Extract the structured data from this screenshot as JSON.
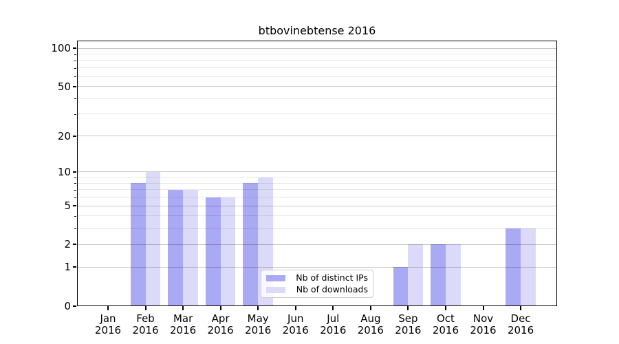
{
  "chart_data": {
    "type": "bar",
    "title": "btbovinebtense 2016",
    "categories": [
      "Jan",
      "Feb",
      "Mar",
      "Apr",
      "May",
      "Jun",
      "Jul",
      "Aug",
      "Sep",
      "Oct",
      "Nov",
      "Dec"
    ],
    "category_year": "2016",
    "series": [
      {
        "name": "Nb of distinct IPs",
        "color": "#a9a9f4",
        "values": [
          0,
          8,
          7,
          6,
          8,
          0,
          0,
          0,
          1,
          2,
          0,
          3
        ]
      },
      {
        "name": "Nb of downloads",
        "color": "#dbdbf9",
        "values": [
          0,
          10,
          7,
          6,
          9,
          0,
          0,
          0,
          2,
          2,
          0,
          3
        ]
      }
    ],
    "xlabel": "",
    "ylabel": "",
    "yscale": "log1p",
    "ylim": [
      0,
      115
    ],
    "y_major_ticks": [
      0,
      1,
      2,
      5,
      10,
      20,
      50,
      100
    ],
    "y_minor_gridlines": [
      3,
      4,
      6,
      7,
      8,
      9,
      30,
      40,
      60,
      70,
      80,
      90
    ],
    "grid": true,
    "grid_above_bars": true,
    "legend_position": "lower center-right inside plot",
    "colors": {
      "distinct_ips_bar": "#a9a9f4",
      "downloads_bar": "#dbdbf9",
      "major_grid": "#c8c8c8",
      "minor_grid": "#e8e8e8",
      "axis": "#000000",
      "background": "#ffffff"
    }
  }
}
